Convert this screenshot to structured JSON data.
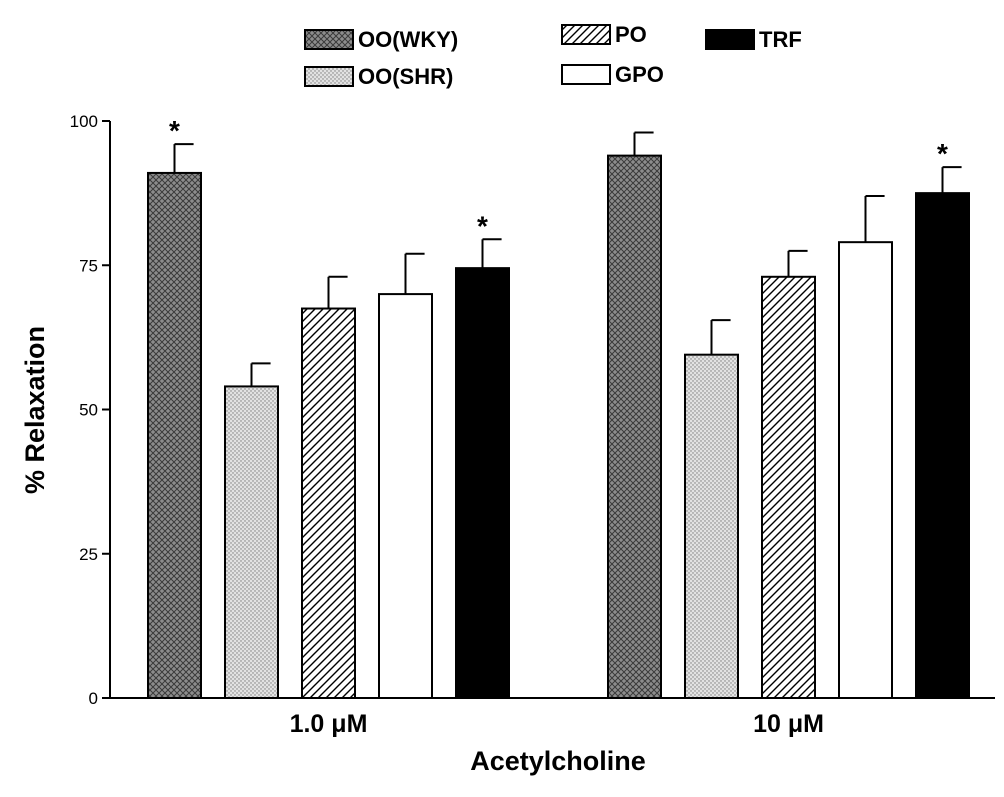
{
  "chart_data": {
    "type": "bar",
    "title": "",
    "xlabel": "Acetylcholine",
    "ylabel": "% Relaxation",
    "ylim": [
      0,
      100
    ],
    "yticks": [
      "0",
      "25",
      "50",
      "75",
      "100"
    ],
    "categories": [
      "1.0 μM",
      "10 μM"
    ],
    "series": [
      {
        "name": "OO(WKY)",
        "pattern": "crosshatch",
        "values": [
          91,
          94
        ],
        "errors": [
          5,
          4
        ],
        "significant": [
          true,
          false
        ]
      },
      {
        "name": "OO(SHR)",
        "pattern": "dots",
        "values": [
          54,
          59.5
        ],
        "errors": [
          4,
          6
        ],
        "significant": [
          false,
          false
        ]
      },
      {
        "name": "PO",
        "pattern": "diagonal",
        "values": [
          67.5,
          73
        ],
        "errors": [
          5.5,
          4.5
        ],
        "significant": [
          false,
          false
        ]
      },
      {
        "name": "GPO",
        "pattern": "white",
        "values": [
          70,
          79
        ],
        "errors": [
          7,
          8
        ],
        "significant": [
          false,
          false
        ]
      },
      {
        "name": "TRF",
        "pattern": "black",
        "values": [
          74.5,
          87.5
        ],
        "errors": [
          5,
          4.5
        ],
        "significant": [
          true,
          true
        ]
      }
    ],
    "significance_marker": "*",
    "grid": false,
    "legend_position": "top"
  }
}
